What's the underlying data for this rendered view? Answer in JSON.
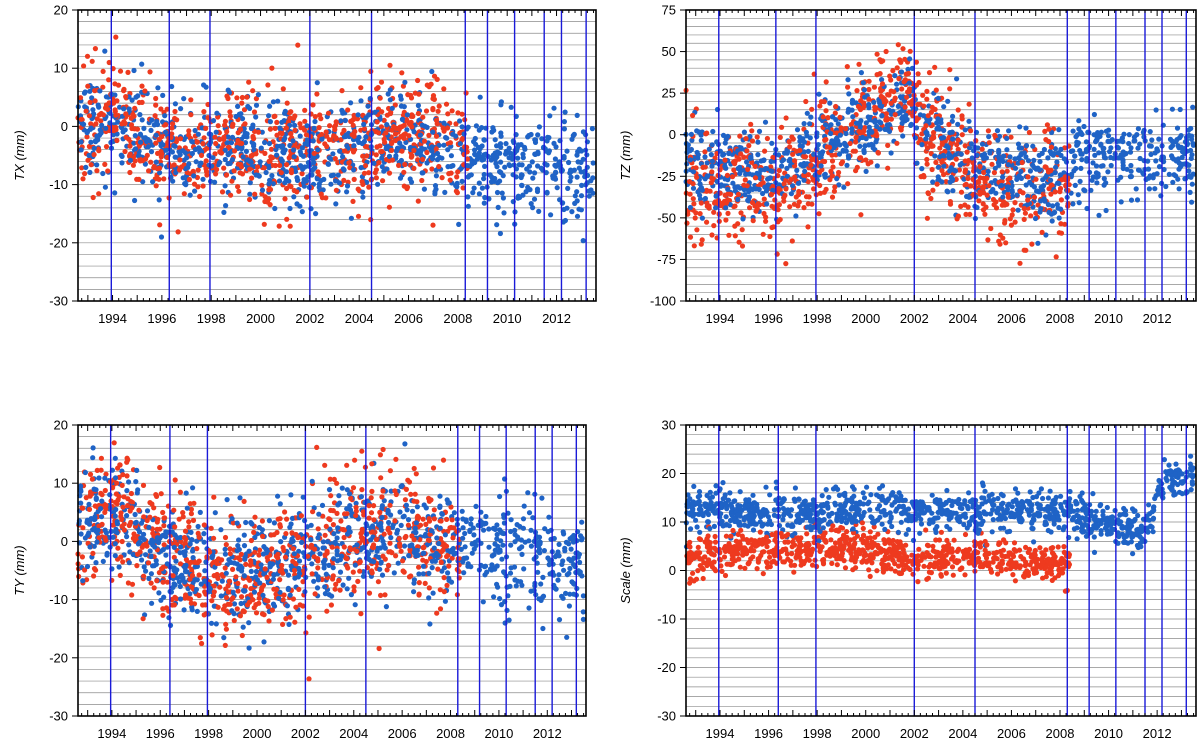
{
  "colors": {
    "series_blue": "#1f63c6",
    "series_red": "#ee3a1f",
    "event_line": "#1a1ad8",
    "grid": "#8c8c8c",
    "frame": "#000000"
  },
  "chart_data": [
    {
      "type": "scatter",
      "title": "",
      "xlabel": "",
      "ylabel": "TX (mm)",
      "xlim": [
        1992.6,
        2013.6
      ],
      "ylim": [
        -30,
        20
      ],
      "yticks": [
        20,
        10,
        0,
        -10,
        -20,
        -30
      ],
      "xticks": [
        "1994",
        "1996",
        "1998",
        "2000",
        "2002",
        "2004",
        "2006",
        "2008",
        "2010",
        "2012"
      ],
      "grid": "horizontal",
      "event_lines": [
        1993.95,
        1996.3,
        1997.95,
        2002.0,
        2004.5,
        2008.3,
        2009.2,
        2010.3,
        2011.5,
        2012.2,
        2013.2
      ],
      "series": [
        {
          "color": "blue",
          "x_range": [
            1992.6,
            2013.5
          ],
          "trend": [
            [
              1992.6,
              0
            ],
            [
              1994,
              0
            ],
            [
              1996,
              -4
            ],
            [
              1998,
              -3
            ],
            [
              2000,
              -5
            ],
            [
              2002,
              -6
            ],
            [
              2004,
              -4
            ],
            [
              2006,
              -1
            ],
            [
              2008,
              -4
            ],
            [
              2010,
              -8
            ],
            [
              2012,
              -6
            ],
            [
              2013.5,
              -8
            ]
          ],
          "scatter": 5.0
        },
        {
          "color": "red",
          "x_range": [
            1992.6,
            2008.4
          ],
          "trend": [
            [
              1992.6,
              0
            ],
            [
              1994,
              1
            ],
            [
              1996,
              -4
            ],
            [
              1998,
              -3
            ],
            [
              2000,
              -4
            ],
            [
              2002,
              -5
            ],
            [
              2004,
              -3
            ],
            [
              2006,
              -1
            ],
            [
              2008.4,
              -2
            ]
          ],
          "scatter": 6.0
        }
      ]
    },
    {
      "type": "scatter",
      "title": "",
      "xlabel": "",
      "ylabel": "TZ (mm)",
      "xlim": [
        1992.6,
        2013.6
      ],
      "ylim": [
        -100,
        75
      ],
      "yticks": [
        75,
        50,
        25,
        0,
        -25,
        -50,
        -75,
        -100
      ],
      "xticks": [
        "1994",
        "1996",
        "1998",
        "2000",
        "2002",
        "2004",
        "2006",
        "2008",
        "2010",
        "2012"
      ],
      "grid": "horizontal",
      "event_lines": [
        1993.95,
        1996.3,
        1997.95,
        2002.0,
        2004.5,
        2008.3,
        2009.2,
        2010.3,
        2011.5,
        2012.2,
        2013.2
      ],
      "series": [
        {
          "color": "blue",
          "x_range": [
            1992.6,
            2013.5
          ],
          "trend": [
            [
              1992.6,
              -15
            ],
            [
              1994,
              -20
            ],
            [
              1996,
              -25
            ],
            [
              1998,
              -10
            ],
            [
              2000,
              5
            ],
            [
              2001.8,
              25
            ],
            [
              2002.2,
              5
            ],
            [
              2004,
              -15
            ],
            [
              2006,
              -25
            ],
            [
              2008,
              -30
            ],
            [
              2009,
              -10
            ],
            [
              2011,
              -15
            ],
            [
              2013.5,
              -10
            ]
          ],
          "scatter": 15.0
        },
        {
          "color": "red",
          "x_range": [
            1992.6,
            2008.4
          ],
          "trend": [
            [
              1992.6,
              -30
            ],
            [
              1994,
              -30
            ],
            [
              1996,
              -35
            ],
            [
              1998,
              -15
            ],
            [
              2000,
              10
            ],
            [
              2001.8,
              30
            ],
            [
              2002.2,
              5
            ],
            [
              2004,
              -20
            ],
            [
              2006,
              -35
            ],
            [
              2008.4,
              -30
            ]
          ],
          "scatter": 20.0
        }
      ]
    },
    {
      "type": "scatter",
      "title": "",
      "xlabel": "",
      "ylabel": "TY (mm)",
      "xlim": [
        1992.6,
        2013.6
      ],
      "ylim": [
        -30,
        20
      ],
      "yticks": [
        20,
        10,
        0,
        -10,
        -20,
        -30
      ],
      "xticks": [
        "1994",
        "1996",
        "1998",
        "2000",
        "2002",
        "2004",
        "2006",
        "2008",
        "2010",
        "2012"
      ],
      "grid": "horizontal",
      "event_lines": [
        1993.95,
        1996.4,
        1997.95,
        2002.0,
        2004.5,
        2008.3,
        2009.2,
        2010.3,
        2011.5,
        2012.2,
        2013.2
      ],
      "series": [
        {
          "color": "blue",
          "x_range": [
            1992.6,
            2013.5
          ],
          "trend": [
            [
              1992.6,
              2
            ],
            [
              1994,
              5
            ],
            [
              1996,
              -2
            ],
            [
              1998,
              -6
            ],
            [
              2000,
              -5
            ],
            [
              2002,
              -3
            ],
            [
              2004,
              0
            ],
            [
              2006,
              2
            ],
            [
              2008,
              -1
            ],
            [
              2010,
              -2
            ],
            [
              2012,
              -3
            ],
            [
              2013.5,
              -5
            ]
          ],
          "scatter": 5.5
        },
        {
          "color": "red",
          "x_range": [
            1992.6,
            2008.4
          ],
          "trend": [
            [
              1992.6,
              3
            ],
            [
              1994,
              6
            ],
            [
              1996,
              -1
            ],
            [
              1998,
              -6
            ],
            [
              2000,
              -6
            ],
            [
              2002,
              -3
            ],
            [
              2004,
              1
            ],
            [
              2006,
              3
            ],
            [
              2008.4,
              -2
            ]
          ],
          "scatter": 6.5
        }
      ]
    },
    {
      "type": "scatter",
      "title": "",
      "xlabel": "",
      "ylabel": "Scale (mm)",
      "xlim": [
        1992.6,
        2013.6
      ],
      "ylim": [
        -30,
        30
      ],
      "yticks": [
        30,
        20,
        10,
        0,
        -10,
        -20,
        -30
      ],
      "xticks": [
        "1994",
        "1996",
        "1998",
        "2000",
        "2002",
        "2004",
        "2006",
        "2008",
        "2010",
        "2012"
      ],
      "grid": "horizontal",
      "event_lines": [
        1993.95,
        1996.4,
        1997.95,
        2002.0,
        2004.5,
        2008.3,
        2009.2,
        2010.3,
        2011.5,
        2012.2,
        2013.2
      ],
      "series": [
        {
          "color": "blue",
          "x_range": [
            1992.6,
            2013.5
          ],
          "trend": [
            [
              1992.6,
              12
            ],
            [
              1994,
              12
            ],
            [
              1996,
              12
            ],
            [
              1998,
              12
            ],
            [
              2000,
              13
            ],
            [
              2002,
              12
            ],
            [
              2004,
              12
            ],
            [
              2006,
              12
            ],
            [
              2008,
              12
            ],
            [
              2010,
              10
            ],
            [
              2011.5,
              8
            ],
            [
              2012.3,
              19
            ],
            [
              2013.5,
              19
            ]
          ],
          "scatter": 2.5
        },
        {
          "color": "red",
          "x_range": [
            1992.6,
            2008.4
          ],
          "trend": [
            [
              1992.6,
              2
            ],
            [
              1994,
              4
            ],
            [
              1996,
              4
            ],
            [
              1998,
              4
            ],
            [
              2000,
              5
            ],
            [
              2002,
              2
            ],
            [
              2004,
              3
            ],
            [
              2006,
              2
            ],
            [
              2008.4,
              1
            ]
          ],
          "scatter": 2.5
        }
      ]
    }
  ]
}
